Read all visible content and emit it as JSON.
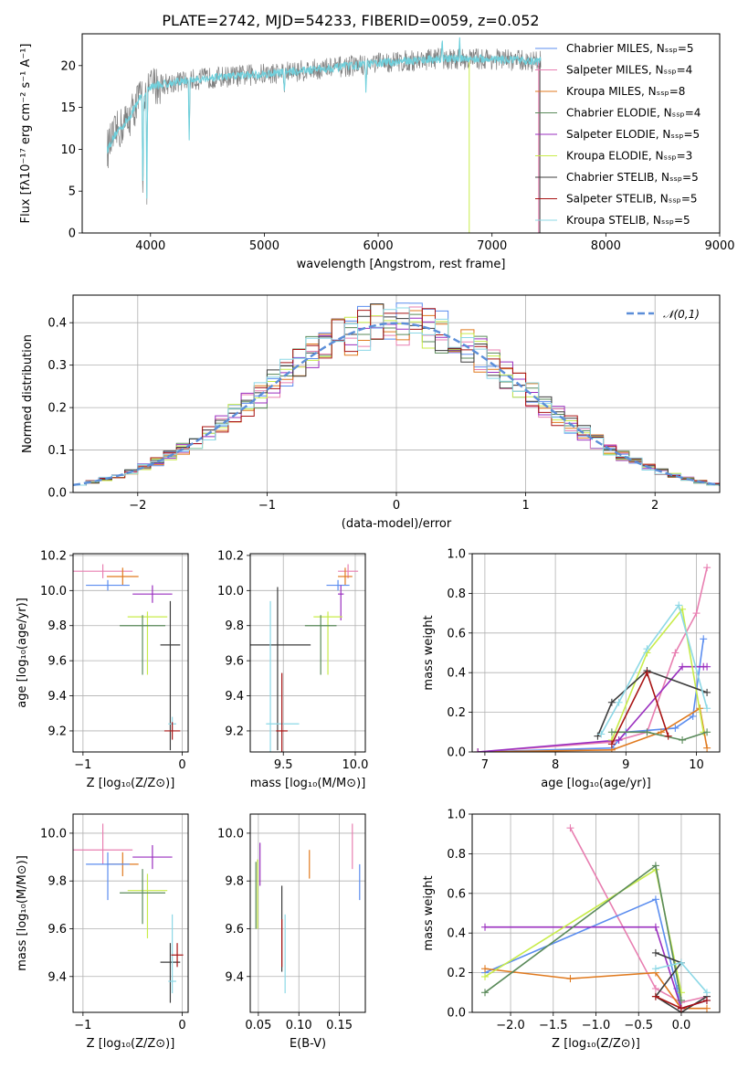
{
  "colors": {
    "chabrier_miles": "#5b8def",
    "salpeter_miles": "#e87fb1",
    "kroupa_miles": "#e07a1f",
    "chabrier_elodie": "#5a8a5a",
    "salpeter_elodie": "#9a2fbf",
    "kroupa_elodie": "#c8ec4a",
    "chabrier_stelib": "#3c3c3c",
    "salpeter_stelib": "#a81414",
    "kroupa_stelib": "#8cd8e6",
    "spectrum_gray": "#808080",
    "spectrum_cyan": "#6fd0dc",
    "normal_curve": "#5b8ed8"
  },
  "chart_data": [
    {
      "id": "spectrum",
      "type": "line",
      "title": "PLATE=2742, MJD=54233, FIBERID=0059, z=0.052",
      "xlabel": "wavelength [Angstrom, rest frame]",
      "ylabel": "Flux [fλ10⁻¹⁷ erg cm⁻² s⁻¹ A⁻¹]",
      "xlim": [
        3400,
        9000
      ],
      "ylim": [
        0,
        23.8
      ],
      "xticks": [
        "4000",
        "5000",
        "6000",
        "7000",
        "8000",
        "9000"
      ],
      "yticks": [
        "0",
        "5",
        "10",
        "15",
        "20"
      ],
      "grid": false,
      "legend_position": "right",
      "legend": [
        "Chabrier MILES, Nₛₛₚ=5",
        "Salpeter MILES, Nₛₛₚ=4",
        "Kroupa MILES, Nₛₛₚ=8",
        "Chabrier ELODIE, Nₛₛₚ=4",
        "Salpeter ELODIE, Nₛₛₚ=5",
        "Kroupa ELODIE, Nₛₛₚ=3",
        "Chabrier STELIB, Nₛₛₚ=5",
        "Salpeter STELIB, Nₛₛₚ=5",
        "Kroupa STELIB, Nₛₛₚ=5"
      ],
      "continuum": {
        "x": [
          3620,
          3700,
          3800,
          3900,
          4000,
          4200,
          4500,
          5000,
          5500,
          6000,
          6500,
          7000,
          7400
        ],
        "y": [
          10,
          12,
          13.5,
          16,
          17.5,
          18,
          18.5,
          19,
          19.6,
          20.3,
          20.8,
          20.8,
          20.5
        ]
      },
      "line_features": [
        {
          "x": 3933,
          "y": 4.5
        },
        {
          "x": 3968,
          "y": 4.5
        },
        {
          "x": 4340,
          "y": 11
        },
        {
          "x": 5175,
          "y": 16.5
        },
        {
          "x": 5893,
          "y": 16.5
        },
        {
          "x": 6563,
          "y": 23.5
        },
        {
          "x": 6716,
          "y": 23
        }
      ],
      "cutoffs": [
        {
          "series": "Kroupa ELODIE, Nₛₛₚ=3",
          "x": 6800
        },
        {
          "series": "Chabrier STELIB, Nₛₛₚ=5",
          "x": 7420
        },
        {
          "series": "Salpeter MILES, Nₛₛₚ=4",
          "x": 7410
        }
      ]
    },
    {
      "id": "residuals",
      "type": "histogram",
      "xlabel": "(data-model)/error",
      "ylabel": "Normed distribution",
      "xlim": [
        -2.5,
        2.5
      ],
      "ylim": [
        0,
        0.465
      ],
      "xticks": [
        "−2",
        "−1",
        "0",
        "1",
        "2"
      ],
      "yticks": [
        "0.0",
        "0.1",
        "0.2",
        "0.3",
        "0.4"
      ],
      "grid": true,
      "legend_position": "top-right",
      "legend": [
        "𝒩(0,1)"
      ],
      "bin_width": 0.1,
      "curve": {
        "mu": 0,
        "sigma": 1
      }
    },
    {
      "id": "age_vs_Z",
      "type": "errorbar",
      "xlabel": "Z [log₁₀(Z/Z⊙)]",
      "ylabel": "age  [log₁₀(age/yr)]",
      "xlim": [
        -1.1,
        0.06
      ],
      "ylim": [
        9.08,
        10.21
      ],
      "xticks": [
        "−1",
        "0"
      ],
      "yticks": [
        "9.2",
        "9.4",
        "9.6",
        "9.8",
        "10.0",
        "10.2"
      ],
      "grid": true,
      "points": [
        {
          "c": "salpeter_miles",
          "x": -0.8,
          "xe": [
            0.3,
            0.3
          ],
          "y": 10.11,
          "ye": [
            0.04,
            0.04
          ]
        },
        {
          "c": "kroupa_miles",
          "x": -0.6,
          "xe": [
            0.16,
            0.16
          ],
          "y": 10.08,
          "ye": [
            0.05,
            0.05
          ]
        },
        {
          "c": "chabrier_miles",
          "x": -0.75,
          "xe": [
            0.22,
            0.22
          ],
          "y": 10.03,
          "ye": [
            0.03,
            0.03
          ]
        },
        {
          "c": "salpeter_elodie",
          "x": -0.3,
          "xe": [
            0.2,
            0.2
          ],
          "y": 9.98,
          "ye": [
            0.05,
            0.05
          ]
        },
        {
          "c": "kroupa_elodie",
          "x": -0.35,
          "xe": [
            0.2,
            0.2
          ],
          "y": 9.85,
          "ye": [
            0.33,
            0.03
          ]
        },
        {
          "c": "chabrier_elodie",
          "x": -0.4,
          "xe": [
            0.23,
            0.23
          ],
          "y": 9.8,
          "ye": [
            0.28,
            0.06
          ]
        },
        {
          "c": "chabrier_stelib",
          "x": -0.12,
          "xe": [
            0.1,
            0.1
          ],
          "y": 9.69,
          "ye": [
            0.6,
            0.25
          ]
        },
        {
          "c": "kroupa_stelib",
          "x": -0.1,
          "xe": [
            0.04,
            0.04
          ],
          "y": 9.24,
          "ye": [
            0.04,
            0.04
          ]
        },
        {
          "c": "salpeter_stelib",
          "x": -0.1,
          "xe": [
            0.08,
            0.08
          ],
          "y": 9.2,
          "ye": [
            0.05,
            0.05
          ]
        }
      ]
    },
    {
      "id": "age_vs_mass",
      "type": "errorbar",
      "xlabel": "mass [log₁₀(M/M⊙)]",
      "ylabel": "",
      "xlim": [
        9.27,
        10.07
      ],
      "ylim": [
        9.08,
        10.21
      ],
      "xticks": [
        "9.5",
        "10.0"
      ],
      "yticks": [
        "9.2",
        "9.4",
        "9.6",
        "9.8",
        "10.0",
        "10.2"
      ],
      "grid": true,
      "points": [
        {
          "c": "salpeter_miles",
          "x": 9.95,
          "xe": [
            0.07,
            0.07
          ],
          "y": 10.11,
          "ye": [
            0.04,
            0.04
          ]
        },
        {
          "c": "kroupa_miles",
          "x": 9.93,
          "xe": [
            0.05,
            0.05
          ],
          "y": 10.08,
          "ye": [
            0.05,
            0.05
          ]
        },
        {
          "c": "chabrier_miles",
          "x": 9.88,
          "xe": [
            0.08,
            0.08
          ],
          "y": 10.03,
          "ye": [
            0.03,
            0.03
          ]
        },
        {
          "c": "salpeter_elodie",
          "x": 9.9,
          "xe": [
            0.02,
            0.02
          ],
          "y": 9.98,
          "ye": [
            0.15,
            0.05
          ]
        },
        {
          "c": "kroupa_elodie",
          "x": 9.81,
          "xe": [
            0.1,
            0.1
          ],
          "y": 9.85,
          "ye": [
            0.33,
            0.03
          ]
        },
        {
          "c": "chabrier_elodie",
          "x": 9.76,
          "xe": [
            0.11,
            0.11
          ],
          "y": 9.8,
          "ye": [
            0.28,
            0.06
          ]
        },
        {
          "c": "chabrier_stelib",
          "x": 9.46,
          "xe": [
            0.19,
            0.23
          ],
          "y": 9.69,
          "ye": [
            0.6,
            0.33
          ]
        },
        {
          "c": "kroupa_stelib",
          "x": 9.41,
          "xe": [
            0.03,
            0.2
          ],
          "y": 9.24,
          "ye": [
            0.21,
            0.7
          ]
        },
        {
          "c": "salpeter_stelib",
          "x": 9.49,
          "xe": [
            0.04,
            0.04
          ],
          "y": 9.2,
          "ye": [
            0.2,
            0.33
          ]
        }
      ]
    },
    {
      "id": "weight_vs_age",
      "type": "line",
      "xlabel": "age  [log₁₀(age/yr)]",
      "ylabel": "mass weight",
      "xlim": [
        6.82,
        10.33
      ],
      "ylim": [
        0,
        1.0
      ],
      "xticks": [
        "7",
        "8",
        "9",
        "10"
      ],
      "yticks": [
        "0.0",
        "0.2",
        "0.4",
        "0.6",
        "0.8",
        "1.0"
      ],
      "grid": true,
      "series": [
        {
          "c": "salpeter_miles",
          "x": [
            6.9,
            8.8,
            9.3,
            9.7,
            10.0,
            10.15
          ],
          "y": [
            0.0,
            0.05,
            0.1,
            0.5,
            0.7,
            0.93
          ]
        },
        {
          "c": "chabrier_miles",
          "x": [
            6.9,
            8.8,
            9.0,
            9.7,
            9.95,
            10.1
          ],
          "y": [
            0.0,
            0.02,
            0.1,
            0.12,
            0.18,
            0.57
          ]
        },
        {
          "c": "kroupa_miles",
          "x": [
            6.9,
            8.8,
            9.5,
            10.05,
            10.15
          ],
          "y": [
            0.0,
            0.01,
            0.1,
            0.22,
            0.02
          ]
        },
        {
          "c": "salpeter_elodie",
          "x": [
            6.9,
            8.9,
            9.8,
            10.1,
            10.15
          ],
          "y": [
            0.0,
            0.06,
            0.43,
            0.43,
            0.43
          ]
        },
        {
          "c": "kroupa_elodie",
          "x": [
            8.8,
            9.3,
            9.8,
            10.1
          ],
          "y": [
            0.06,
            0.5,
            0.72,
            0.1
          ]
        },
        {
          "c": "chabrier_elodie",
          "x": [
            8.8,
            9.3,
            9.8,
            10.15
          ],
          "y": [
            0.1,
            0.1,
            0.06,
            0.1
          ]
        },
        {
          "c": "chabrier_stelib",
          "x": [
            8.6,
            8.8,
            9.3,
            10.15
          ],
          "y": [
            0.08,
            0.25,
            0.41,
            0.3
          ]
        },
        {
          "c": "salpeter_stelib",
          "x": [
            8.8,
            9.3,
            9.6
          ],
          "y": [
            0.04,
            0.4,
            0.08
          ]
        },
        {
          "c": "kroupa_stelib",
          "x": [
            8.65,
            8.9,
            9.3,
            9.75,
            10.15
          ],
          "y": [
            0.09,
            0.25,
            0.52,
            0.74,
            0.22
          ]
        }
      ]
    },
    {
      "id": "mass_vs_Z",
      "type": "errorbar",
      "xlabel": "Z [log₁₀(Z/Z⊙)]",
      "ylabel": "mass [log₁₀(M/M⊙)]",
      "xlim": [
        -1.1,
        0.06
      ],
      "ylim": [
        9.25,
        10.08
      ],
      "xticks": [
        "−1",
        "0"
      ],
      "yticks": [
        "9.4",
        "9.6",
        "9.8",
        "10.0"
      ],
      "grid": true,
      "points": [
        {
          "c": "salpeter_miles",
          "x": -0.8,
          "xe": [
            0.3,
            0.3
          ],
          "y": 9.93,
          "ye": [
            0.06,
            0.11
          ]
        },
        {
          "c": "kroupa_miles",
          "x": -0.6,
          "xe": [
            0.16,
            0.16
          ],
          "y": 9.87,
          "ye": [
            0.05,
            0.05
          ]
        },
        {
          "c": "chabrier_miles",
          "x": -0.75,
          "xe": [
            0.22,
            0.22
          ],
          "y": 9.87,
          "ye": [
            0.15,
            0.05
          ]
        },
        {
          "c": "salpeter_elodie",
          "x": -0.3,
          "xe": [
            0.2,
            0.2
          ],
          "y": 9.9,
          "ye": [
            0.05,
            0.05
          ]
        },
        {
          "c": "kroupa_elodie",
          "x": -0.35,
          "xe": [
            0.2,
            0.2
          ],
          "y": 9.76,
          "ye": [
            0.2,
            0.07
          ]
        },
        {
          "c": "chabrier_elodie",
          "x": -0.4,
          "xe": [
            0.23,
            0.23
          ],
          "y": 9.75,
          "ye": [
            0.13,
            0.1
          ]
        },
        {
          "c": "chabrier_stelib",
          "x": -0.12,
          "xe": [
            0.1,
            0.1
          ],
          "y": 9.46,
          "ye": [
            0.17,
            0.08
          ]
        },
        {
          "c": "kroupa_stelib",
          "x": -0.1,
          "xe": [
            0.04,
            0.04
          ],
          "y": 9.38,
          "ye": [
            0.05,
            0.28
          ]
        },
        {
          "c": "salpeter_stelib",
          "x": -0.05,
          "xe": [
            0.06,
            0.06
          ],
          "y": 9.49,
          "ye": [
            0.05,
            0.05
          ]
        }
      ]
    },
    {
      "id": "mass_vs_ebv",
      "type": "errorbar",
      "xlabel": "E(B-V)",
      "ylabel": "",
      "xlim": [
        0.04,
        0.182
      ],
      "ylim": [
        9.25,
        10.08
      ],
      "xticks": [
        "0.05",
        "0.10",
        "0.15"
      ],
      "yticks": [
        "9.4",
        "9.6",
        "9.8",
        "10.0"
      ],
      "grid": true,
      "points": [
        {
          "c": "salpeter_miles",
          "x": 0.166,
          "xe": [
            0,
            0
          ],
          "y": 9.95,
          "ye": [
            0.1,
            0.09
          ]
        },
        {
          "c": "kroupa_miles",
          "x": 0.113,
          "xe": [
            0,
            0
          ],
          "y": 9.87,
          "ye": [
            0.06,
            0.06
          ]
        },
        {
          "c": "chabrier_miles",
          "x": 0.175,
          "xe": [
            0,
            0
          ],
          "y": 9.8,
          "ye": [
            0.08,
            0.07
          ]
        },
        {
          "c": "salpeter_elodie",
          "x": 0.052,
          "xe": [
            0,
            0
          ],
          "y": 9.87,
          "ye": [
            0.09,
            0.09
          ]
        },
        {
          "c": "kroupa_elodie",
          "x": 0.049,
          "xe": [
            0,
            0
          ],
          "y": 9.76,
          "ye": [
            0.16,
            0.13
          ]
        },
        {
          "c": "chabrier_elodie",
          "x": 0.047,
          "xe": [
            0,
            0
          ],
          "y": 9.75,
          "ye": [
            0.15,
            0.13
          ]
        },
        {
          "c": "chabrier_stelib",
          "x": 0.079,
          "xe": [
            0,
            0
          ],
          "y": 9.62,
          "ye": [
            0.2,
            0.16
          ]
        },
        {
          "c": "kroupa_stelib",
          "x": 0.083,
          "xe": [
            0,
            0
          ],
          "y": 9.5,
          "ye": [
            0.17,
            0.16
          ]
        },
        {
          "c": "salpeter_stelib",
          "x": 0.079,
          "xe": [
            0,
            0
          ],
          "y": 9.53,
          "ye": [
            0.09,
            0.11
          ]
        }
      ]
    },
    {
      "id": "weight_vs_Z",
      "type": "line",
      "xlabel": "Z [log₁₀(Z/Z⊙)]",
      "ylabel": "mass weight",
      "xlim": [
        -2.45,
        0.45
      ],
      "ylim": [
        0,
        1.0
      ],
      "xticks": [
        "−2.0",
        "−1.5",
        "−1.0",
        "−0.5",
        "0.0"
      ],
      "yticks": [
        "0.0",
        "0.2",
        "0.4",
        "0.6",
        "0.8",
        "1.0"
      ],
      "grid": true,
      "series": [
        {
          "c": "salpeter_miles",
          "x": [
            -1.3,
            -0.3,
            0.0,
            0.3
          ],
          "y": [
            0.93,
            0.12,
            0.05,
            0.08
          ]
        },
        {
          "c": "chabrier_miles",
          "x": [
            -2.3,
            -0.3,
            -0.05,
            0.0,
            0.3
          ],
          "y": [
            0.2,
            0.57,
            0.12,
            0.02,
            0.06
          ]
        },
        {
          "c": "kroupa_miles",
          "x": [
            -2.3,
            -1.3,
            -0.3,
            0.0,
            0.3
          ],
          "y": [
            0.22,
            0.17,
            0.2,
            0.02,
            0.02
          ]
        },
        {
          "c": "salpeter_elodie",
          "x": [
            -2.3,
            -0.3,
            0.0,
            0.3
          ],
          "y": [
            0.43,
            0.43,
            0.02,
            0.06
          ]
        },
        {
          "c": "kroupa_elodie",
          "x": [
            -2.3,
            -0.3,
            0.0
          ],
          "y": [
            0.18,
            0.72,
            0.1
          ]
        },
        {
          "c": "chabrier_elodie",
          "x": [
            -2.3,
            -0.3,
            0.0
          ],
          "y": [
            0.1,
            0.74,
            0.06
          ]
        },
        {
          "c": "chabrier_stelib",
          "x": [
            -0.3,
            0.0,
            -0.3,
            0.0,
            0.3
          ],
          "y": [
            0.3,
            0.25,
            0.08,
            0.0,
            0.08
          ]
        },
        {
          "c": "salpeter_stelib",
          "x": [
            -0.3,
            0.0,
            0.3
          ],
          "y": [
            0.08,
            0.02,
            0.06
          ]
        },
        {
          "c": "kroupa_stelib",
          "x": [
            -0.3,
            0.0,
            0.3
          ],
          "y": [
            0.22,
            0.25,
            0.1
          ]
        }
      ]
    }
  ]
}
